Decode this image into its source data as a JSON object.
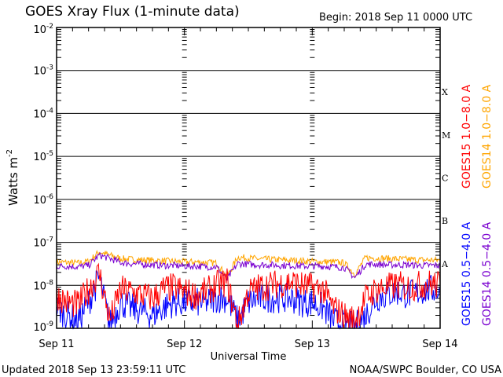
{
  "chart_data": {
    "type": "line",
    "title": "GOES Xray Flux (1-minute data)",
    "begin_label": "Begin:  2018 Sep 11 0000 UTC",
    "xlabel": "Universal Time",
    "ylabel": "Watts m",
    "ylabel_exp": "-2",
    "yscale": "log",
    "ylim": [
      1e-09,
      0.01
    ],
    "y_ticks": [
      {
        "base": "10",
        "exp": "-2",
        "value": 0.01
      },
      {
        "base": "10",
        "exp": "-3",
        "value": 0.001
      },
      {
        "base": "10",
        "exp": "-4",
        "value": 0.0001
      },
      {
        "base": "10",
        "exp": "-5",
        "value": 1e-05
      },
      {
        "base": "10",
        "exp": "-6",
        "value": 1e-06
      },
      {
        "base": "10",
        "exp": "-7",
        "value": 1e-07
      },
      {
        "base": "10",
        "exp": "-8",
        "value": 1e-08
      },
      {
        "base": "10",
        "exp": "-9",
        "value": 1e-09
      }
    ],
    "x_ticks": [
      "Sep 11",
      "Sep 12",
      "Sep 13",
      "Sep 14"
    ],
    "xlim": [
      "2018-09-11T00:00",
      "2018-09-14T00:00"
    ],
    "flare_classes": [
      {
        "label": "X",
        "min": 0.0001
      },
      {
        "label": "M",
        "min": 1e-05
      },
      {
        "label": "C",
        "min": 1e-06
      },
      {
        "label": "B",
        "min": 1e-07
      },
      {
        "label": "A",
        "min": 1e-08
      }
    ],
    "grid": "horizontal lines at decades",
    "legend_placement": "right, vertical text",
    "x": [
      "2018-09-11T00:00",
      "2018-09-11T02:00",
      "2018-09-11T04:00",
      "2018-09-11T06:00",
      "2018-09-11T08:00",
      "2018-09-11T10:00",
      "2018-09-11T12:00",
      "2018-09-11T14:00",
      "2018-09-11T16:00",
      "2018-09-11T18:00",
      "2018-09-11T20:00",
      "2018-09-11T22:00",
      "2018-09-12T00:00",
      "2018-09-12T02:00",
      "2018-09-12T04:00",
      "2018-09-12T06:00",
      "2018-09-12T08:00",
      "2018-09-12T10:00",
      "2018-09-12T12:00",
      "2018-09-12T14:00",
      "2018-09-12T16:00",
      "2018-09-12T18:00",
      "2018-09-12T20:00",
      "2018-09-12T22:00",
      "2018-09-13T00:00",
      "2018-09-13T02:00",
      "2018-09-13T04:00",
      "2018-09-13T06:00",
      "2018-09-13T08:00",
      "2018-09-13T10:00",
      "2018-09-13T12:00",
      "2018-09-13T14:00",
      "2018-09-13T16:00",
      "2018-09-13T18:00",
      "2018-09-13T20:00",
      "2018-09-13T22:00",
      "2018-09-14T00:00"
    ],
    "series": [
      {
        "name": "GOES15 0.5−4.0 A",
        "color": "#0000ff",
        "values": [
          3e-09,
          2e-09,
          1.5e-09,
          4e-09,
          1.5e-08,
          1.2e-09,
          4e-09,
          3e-09,
          2.5e-09,
          2e-09,
          3e-09,
          4e-09,
          4e-09,
          4e-09,
          4e-09,
          5e-09,
          5e-09,
          1.5e-09,
          4e-09,
          5e-09,
          5e-09,
          5e-09,
          5e-09,
          4e-09,
          4e-09,
          3e-09,
          1.5e-09,
          1.2e-09,
          1.1e-09,
          2e-09,
          5e-09,
          6e-09,
          7e-09,
          6e-09,
          7e-09,
          8e-09,
          8e-09
        ]
      },
      {
        "name": "GOES15 1.0−8.0 A",
        "color": "#ff0000",
        "values": [
          6e-09,
          4e-09,
          3.5e-09,
          8e-09,
          2e-08,
          1.5e-09,
          8e-09,
          7e-09,
          6e-09,
          5e-09,
          8e-09,
          9e-09,
          7e-09,
          6e-09,
          7e-09,
          1e-08,
          1.2e-08,
          1.2e-09,
          7e-09,
          9e-09,
          1e-08,
          1.1e-08,
          1.2e-08,
          1e-08,
          9e-09,
          8e-09,
          3e-09,
          2e-09,
          1.5e-09,
          5e-09,
          8e-09,
          9e-09,
          1e-08,
          9e-09,
          1e-08,
          1.1e-08,
          1e-08
        ]
      },
      {
        "name": "GOES14 0.5−4.0 A",
        "color": "#7a00d0",
        "values": [
          2.8e-08,
          2.8e-08,
          2.7e-08,
          2.9e-08,
          5e-08,
          4.2e-08,
          3.4e-08,
          3.2e-08,
          3.1e-08,
          3e-08,
          2.9e-08,
          2.9e-08,
          2.8e-08,
          2.8e-08,
          2.7e-08,
          2.7e-08,
          1.4e-08,
          3.2e-08,
          3.1e-08,
          3e-08,
          3e-08,
          2.9e-08,
          2.9e-08,
          2.8e-08,
          2.8e-08,
          2.8e-08,
          2.7e-08,
          2.6e-08,
          1.5e-08,
          3.1e-08,
          3.1e-08,
          3e-08,
          3e-08,
          3e-08,
          2.9e-08,
          2.9e-08,
          2.9e-08
        ]
      },
      {
        "name": "GOES14 1.0−8.0 A",
        "color": "#ffa500",
        "values": [
          3.5e-08,
          3.4e-08,
          3.3e-08,
          3.6e-08,
          6e-08,
          5e-08,
          4.2e-08,
          4e-08,
          3.9e-08,
          3.8e-08,
          3.7e-08,
          3.6e-08,
          3.5e-08,
          3.5e-08,
          3.4e-08,
          3.3e-08,
          1.6e-08,
          4.5e-08,
          4.3e-08,
          4.1e-08,
          4e-08,
          3.9e-08,
          3.8e-08,
          3.7e-08,
          3.6e-08,
          3.5e-08,
          3.5e-08,
          3.3e-08,
          1.8e-08,
          4.4e-08,
          4.3e-08,
          4.2e-08,
          4.1e-08,
          4e-08,
          3.9e-08,
          3.9e-08,
          3.8e-08
        ]
      }
    ]
  },
  "legend": {
    "goes15_long": "GOES15 1.0−8.0 A",
    "goes14_long": "GOES14 1.0−8.0 A",
    "goes15_short": "GOES15 0.5−4.0 A",
    "goes14_short": "GOES14 0.5−4.0 A"
  },
  "footer": {
    "updated": "Updated 2018 Sep 13 23:59:11 UTC",
    "credit": "NOAA/SWPC Boulder, CO USA"
  }
}
